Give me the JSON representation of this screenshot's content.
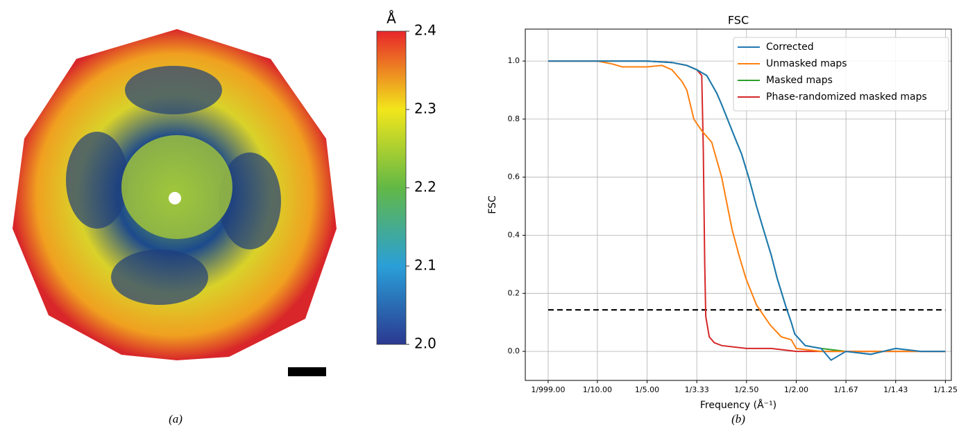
{
  "chart_data": [
    {
      "type": "colorbar",
      "title": "Å",
      "caption": "(a)",
      "colors": [
        "#2b3990",
        "#2a9fd8",
        "#62b846",
        "#f2e61b",
        "#e8262a"
      ],
      "ylim": [
        2.0,
        2.4
      ],
      "yticks": [
        {
          "value": 2.0,
          "label": "2.0"
        },
        2.1,
        2.2,
        2.3,
        2.4
      ]
    },
    {
      "type": "line",
      "title": "FSC",
      "caption": "(b)",
      "xlabel": "Frequency (Å⁻¹)",
      "ylabel": "FSC",
      "grid": true,
      "legend": "upper right",
      "xlim": [
        -0.045,
        0.812
      ],
      "ylim": [
        -0.1,
        1.11
      ],
      "xticks": [
        {
          "value": 0.001,
          "label": "1/999.00"
        },
        {
          "value": 0.1,
          "label": "1/10.00"
        },
        {
          "value": 0.2,
          "label": "1/5.00"
        },
        {
          "value": 0.3,
          "label": "1/3.33"
        },
        {
          "value": 0.4,
          "label": "1/2.50"
        },
        {
          "value": 0.5,
          "label": "1/2.00"
        },
        {
          "value": 0.6,
          "label": "1/1.67"
        },
        {
          "value": 0.7,
          "label": "1/1.43"
        },
        {
          "value": 0.8,
          "label": "1/1.25"
        }
      ],
      "yticks": [
        {
          "value": 0,
          "label": "0.0"
        },
        0.2,
        0.4,
        0.6,
        0.8,
        {
          "value": 1,
          "label": "1.0"
        }
      ],
      "threshold": 0.143,
      "series": [
        {
          "name": "Corrected",
          "color": "#1f77b4",
          "x": [
            0.001,
            0.1,
            0.2,
            0.25,
            0.28,
            0.3,
            0.32,
            0.34,
            0.35,
            0.378,
            0.39,
            0.406,
            0.42,
            0.434,
            0.45,
            0.462,
            0.48,
            0.49,
            0.497,
            0.518,
            0.55,
            0.57,
            0.6,
            0.65,
            0.7,
            0.75,
            0.8
          ],
          "values": [
            1,
            1,
            1,
            0.995,
            0.985,
            0.97,
            0.95,
            0.89,
            0.85,
            0.73,
            0.68,
            0.59,
            0.5,
            0.42,
            0.33,
            0.25,
            0.15,
            0.1,
            0.06,
            0.02,
            0.01,
            -0.03,
            0.0,
            -0.01,
            0.01,
            0.0,
            0.0
          ]
        },
        {
          "name": "Unmasked maps",
          "color": "#ff7f0e",
          "x": [
            0.001,
            0.1,
            0.13,
            0.15,
            0.2,
            0.23,
            0.25,
            0.27,
            0.28,
            0.294,
            0.31,
            0.33,
            0.35,
            0.371,
            0.385,
            0.399,
            0.42,
            0.448,
            0.47,
            0.49,
            0.5,
            0.55,
            0.6,
            0.7,
            0.8
          ],
          "values": [
            1,
            1,
            0.99,
            0.98,
            0.98,
            0.985,
            0.97,
            0.93,
            0.9,
            0.8,
            0.76,
            0.72,
            0.6,
            0.42,
            0.33,
            0.25,
            0.16,
            0.09,
            0.05,
            0.04,
            0.01,
            0.0,
            0.0,
            0.0,
            0.0
          ]
        },
        {
          "name": "Masked maps",
          "color": "#2ca02c",
          "x": [
            0.001,
            0.1,
            0.2,
            0.25,
            0.28,
            0.3,
            0.32,
            0.34,
            0.35,
            0.378,
            0.39,
            0.406,
            0.42,
            0.434,
            0.45,
            0.462,
            0.48,
            0.49,
            0.497,
            0.518,
            0.55,
            0.6,
            0.65,
            0.7,
            0.75,
            0.8
          ],
          "values": [
            1,
            1,
            1,
            0.995,
            0.985,
            0.97,
            0.95,
            0.89,
            0.85,
            0.73,
            0.68,
            0.59,
            0.5,
            0.42,
            0.33,
            0.25,
            0.15,
            0.1,
            0.06,
            0.02,
            0.01,
            0.0,
            -0.01,
            0.01,
            0.0,
            0.0
          ]
        },
        {
          "name": "Phase-randomized masked maps",
          "color": "#d62728",
          "x": [
            0.001,
            0.1,
            0.2,
            0.25,
            0.28,
            0.3,
            0.31,
            0.313,
            0.316,
            0.318,
            0.325,
            0.335,
            0.35,
            0.4,
            0.45,
            0.5,
            0.6,
            0.7,
            0.8
          ],
          "values": [
            1,
            1,
            1,
            0.995,
            0.985,
            0.97,
            0.95,
            0.7,
            0.3,
            0.12,
            0.05,
            0.03,
            0.02,
            0.01,
            0.01,
            0.0,
            0.0,
            0.0,
            0.0
          ]
        }
      ]
    }
  ]
}
